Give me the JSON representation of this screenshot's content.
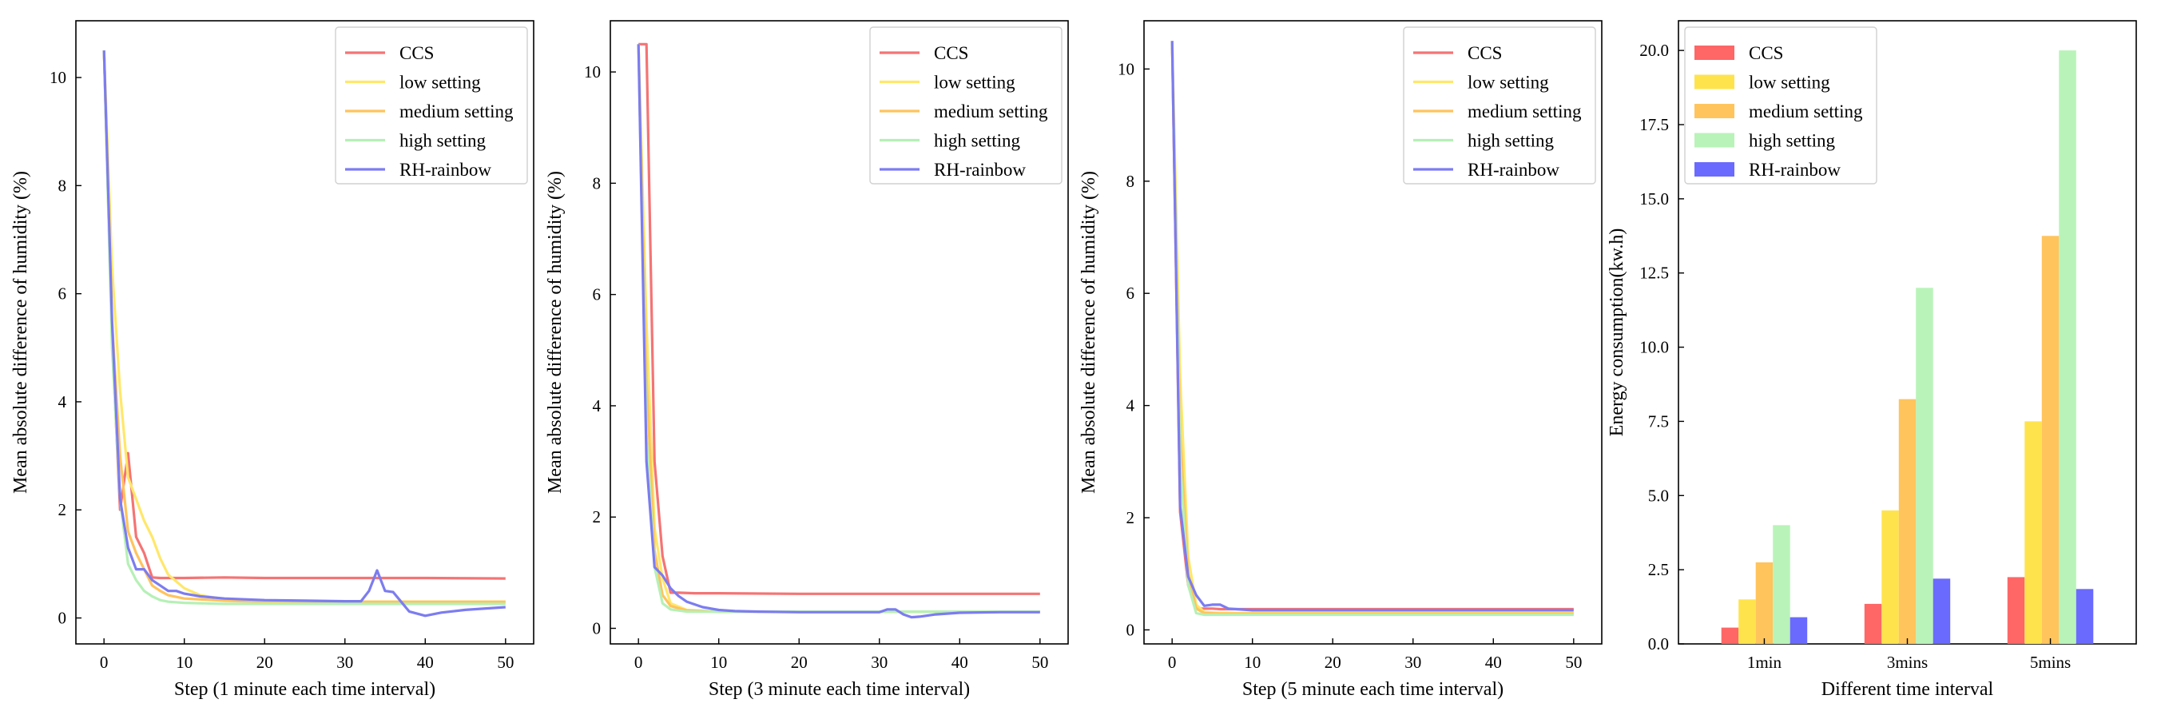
{
  "colors": {
    "CCS": "#f47474",
    "low setting": "#ffe76a",
    "medium setting": "#ffc35e",
    "high setting": "#b6f0b6",
    "RH-rainbow": "#7c7cf0",
    "bar_CCS": "#ff6666",
    "bar_low setting": "#ffe34d",
    "bar_medium setting": "#ffc45c",
    "bar_high setting": "#b9f3b9",
    "bar_RH-rainbow": "#6a6aff"
  },
  "chart_data": [
    {
      "type": "line",
      "xlabel": "Step (1 minute each time interval)",
      "ylabel": "Mean absolute difference of humidity (%)",
      "xlim": [
        -3.5,
        53.5
      ],
      "ylim": [
        -0.48,
        11.05
      ],
      "xticks": [
        0,
        10,
        20,
        30,
        40,
        50
      ],
      "yticks": [
        0,
        2,
        4,
        6,
        8,
        10
      ],
      "legend": "top-right",
      "series": [
        {
          "name": "CCS",
          "x": [
            0,
            1,
            2,
            3,
            4,
            5,
            6,
            7,
            8,
            10,
            15,
            20,
            30,
            40,
            50
          ],
          "y": [
            10.5,
            5.2,
            2.0,
            3.05,
            1.5,
            1.2,
            0.75,
            0.74,
            0.74,
            0.74,
            0.75,
            0.74,
            0.74,
            0.74,
            0.73
          ]
        },
        {
          "name": "low setting",
          "x": [
            0,
            1,
            2,
            3,
            4,
            5,
            6,
            7,
            8,
            10,
            12,
            15,
            20,
            30,
            40,
            50
          ],
          "y": [
            10.5,
            6.5,
            4.2,
            2.6,
            2.2,
            1.8,
            1.5,
            1.1,
            0.8,
            0.55,
            0.42,
            0.35,
            0.3,
            0.3,
            0.3,
            0.3
          ]
        },
        {
          "name": "medium setting",
          "x": [
            0,
            1,
            2,
            3,
            4,
            5,
            6,
            7,
            8,
            10,
            15,
            20,
            30,
            40,
            50
          ],
          "y": [
            10.5,
            5.5,
            3.0,
            1.6,
            1.2,
            0.9,
            0.6,
            0.5,
            0.42,
            0.36,
            0.32,
            0.3,
            0.3,
            0.3,
            0.3
          ]
        },
        {
          "name": "high setting",
          "x": [
            0,
            1,
            2,
            3,
            4,
            5,
            6,
            7,
            8,
            10,
            15,
            20,
            30,
            40,
            50
          ],
          "y": [
            10.5,
            5.0,
            2.2,
            1.0,
            0.7,
            0.5,
            0.4,
            0.33,
            0.3,
            0.28,
            0.26,
            0.26,
            0.26,
            0.26,
            0.26
          ]
        },
        {
          "name": "RH-rainbow",
          "x": [
            0,
            1,
            2,
            3,
            4,
            5,
            6,
            7,
            8,
            9,
            10,
            12,
            15,
            20,
            25,
            30,
            32,
            33,
            34,
            35,
            36,
            37,
            38,
            40,
            42,
            45,
            50
          ],
          "y": [
            10.5,
            5.5,
            2.2,
            1.3,
            0.9,
            0.9,
            0.7,
            0.6,
            0.5,
            0.5,
            0.45,
            0.4,
            0.36,
            0.33,
            0.32,
            0.31,
            0.31,
            0.5,
            0.88,
            0.5,
            0.48,
            0.3,
            0.12,
            0.04,
            0.1,
            0.15,
            0.2
          ]
        }
      ]
    },
    {
      "type": "line",
      "xlabel": "Step (3 minute each time interval)",
      "ylabel": "Mean absolute difference of humidity (%)",
      "xlim": [
        -3.5,
        53.5
      ],
      "ylim": [
        -0.28,
        10.92
      ],
      "xticks": [
        0,
        10,
        20,
        30,
        40,
        50
      ],
      "yticks": [
        0,
        2,
        4,
        6,
        8,
        10
      ],
      "legend": "top-right",
      "series": [
        {
          "name": "CCS",
          "x": [
            0,
            1,
            2,
            3,
            4,
            5,
            7,
            10,
            20,
            30,
            40,
            50
          ],
          "y": [
            10.5,
            10.5,
            3.0,
            1.3,
            0.64,
            0.64,
            0.63,
            0.63,
            0.62,
            0.62,
            0.62,
            0.62
          ]
        },
        {
          "name": "low setting",
          "x": [
            0,
            1,
            2,
            3,
            4,
            6,
            10,
            20,
            30,
            40,
            50
          ],
          "y": [
            10.5,
            5.5,
            1.8,
            0.9,
            0.45,
            0.33,
            0.3,
            0.3,
            0.3,
            0.3,
            0.3
          ]
        },
        {
          "name": "medium setting",
          "x": [
            0,
            1,
            2,
            3,
            4,
            6,
            10,
            20,
            30,
            40,
            50
          ],
          "y": [
            10.5,
            4.5,
            1.4,
            0.6,
            0.4,
            0.32,
            0.3,
            0.3,
            0.3,
            0.3,
            0.3
          ]
        },
        {
          "name": "high setting",
          "x": [
            0,
            1,
            2,
            3,
            4,
            6,
            10,
            20,
            30,
            40,
            50
          ],
          "y": [
            10.5,
            3.5,
            1.1,
            0.45,
            0.34,
            0.3,
            0.3,
            0.3,
            0.3,
            0.3,
            0.3
          ]
        },
        {
          "name": "RH-rainbow",
          "x": [
            0,
            1,
            2,
            3,
            4,
            5,
            6,
            8,
            10,
            12,
            15,
            20,
            25,
            30,
            31,
            32,
            33,
            34,
            35,
            37,
            40,
            45,
            50
          ],
          "y": [
            10.5,
            3.0,
            1.1,
            0.95,
            0.72,
            0.58,
            0.48,
            0.38,
            0.33,
            0.31,
            0.3,
            0.29,
            0.29,
            0.29,
            0.34,
            0.34,
            0.25,
            0.2,
            0.21,
            0.25,
            0.28,
            0.29,
            0.29
          ]
        }
      ]
    },
    {
      "type": "line",
      "xlabel": "Step (5 minute each time interval)",
      "ylabel": "Mean absolute difference of humidity (%)",
      "xlim": [
        -3.5,
        53.5
      ],
      "ylim": [
        -0.25,
        10.86
      ],
      "xticks": [
        0,
        10,
        20,
        30,
        40,
        50
      ],
      "yticks": [
        0,
        2,
        4,
        6,
        8,
        10
      ],
      "legend": "top-right",
      "series": [
        {
          "name": "CCS",
          "x": [
            0,
            1,
            2,
            3,
            4,
            5,
            6,
            8,
            10,
            20,
            30,
            40,
            50
          ],
          "y": [
            10.5,
            2.1,
            0.8,
            0.38,
            0.38,
            0.38,
            0.37,
            0.37,
            0.37,
            0.37,
            0.37,
            0.37,
            0.37
          ]
        },
        {
          "name": "low setting",
          "x": [
            0,
            1,
            2,
            3,
            4,
            6,
            10,
            20,
            30,
            40,
            50
          ],
          "y": [
            10.5,
            4.5,
            1.3,
            0.45,
            0.32,
            0.3,
            0.3,
            0.3,
            0.3,
            0.3,
            0.3
          ]
        },
        {
          "name": "medium setting",
          "x": [
            0,
            1,
            2,
            3,
            4,
            6,
            10,
            20,
            30,
            40,
            50
          ],
          "y": [
            10.5,
            3.5,
            1.0,
            0.38,
            0.3,
            0.29,
            0.29,
            0.29,
            0.29,
            0.29,
            0.29
          ]
        },
        {
          "name": "high setting",
          "x": [
            0,
            1,
            2,
            3,
            4,
            6,
            10,
            20,
            30,
            40,
            50
          ],
          "y": [
            10.5,
            3.0,
            0.8,
            0.3,
            0.27,
            0.27,
            0.27,
            0.27,
            0.27,
            0.27,
            0.27
          ]
        },
        {
          "name": "RH-rainbow",
          "x": [
            0,
            1,
            2,
            3,
            4,
            5,
            6,
            7,
            8,
            10,
            20,
            30,
            40,
            50
          ],
          "y": [
            10.5,
            2.2,
            0.95,
            0.62,
            0.43,
            0.45,
            0.45,
            0.38,
            0.37,
            0.35,
            0.35,
            0.35,
            0.35,
            0.35
          ]
        }
      ]
    },
    {
      "type": "bar",
      "xlabel": "Different time interval",
      "ylabel": "Energy consumption(kw.h)",
      "categories": [
        "1min",
        "3mins",
        "5mins"
      ],
      "ylim": [
        0,
        21.0
      ],
      "yticks": [
        0.0,
        2.5,
        5.0,
        7.5,
        10.0,
        12.5,
        15.0,
        17.5,
        20.0
      ],
      "ytick_labels": [
        "0.0",
        "2.5",
        "5.0",
        "7.5",
        "10.0",
        "12.5",
        "15.0",
        "17.5",
        "20.0"
      ],
      "legend": "top-left",
      "series": [
        {
          "name": "CCS",
          "values": [
            0.55,
            1.35,
            2.25
          ]
        },
        {
          "name": "low setting",
          "values": [
            1.5,
            4.5,
            7.5
          ]
        },
        {
          "name": "medium setting",
          "values": [
            2.75,
            8.25,
            13.75
          ]
        },
        {
          "name": "high setting",
          "values": [
            4.0,
            12.0,
            20.0
          ]
        },
        {
          "name": "RH-rainbow",
          "values": [
            0.9,
            2.2,
            1.85
          ]
        }
      ]
    }
  ]
}
